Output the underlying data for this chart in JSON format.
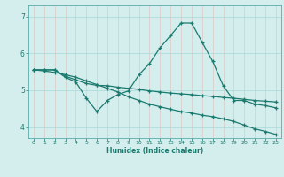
{
  "title": "",
  "xlabel": "Humidex (Indice chaleur)",
  "bg_color": "#d4eeee",
  "grid_color": "#a8d8d8",
  "line_color": "#1a7a6e",
  "spine_color": "#5aacac",
  "tick_color": "#1a7a6e",
  "xlim": [
    -0.5,
    23.5
  ],
  "ylim": [
    3.7,
    7.3
  ],
  "yticks": [
    4,
    5,
    6,
    7
  ],
  "xticks": [
    0,
    1,
    2,
    3,
    4,
    5,
    6,
    7,
    8,
    9,
    10,
    11,
    12,
    13,
    14,
    15,
    16,
    17,
    18,
    19,
    20,
    21,
    22,
    23
  ],
  "line1_x": [
    0,
    1,
    2,
    3,
    4,
    5,
    6,
    7,
    8,
    9,
    10,
    11,
    12,
    13,
    14,
    15,
    16,
    17,
    18,
    19,
    20,
    21,
    22,
    23
  ],
  "line1_y": [
    5.55,
    5.55,
    5.55,
    5.35,
    5.22,
    4.78,
    4.42,
    4.72,
    4.88,
    4.98,
    5.42,
    5.72,
    6.15,
    6.48,
    6.82,
    6.82,
    6.3,
    5.78,
    5.12,
    4.72,
    4.72,
    4.62,
    4.58,
    4.52
  ],
  "line2_x": [
    0,
    1,
    2,
    3,
    4,
    5,
    6,
    7,
    8,
    9,
    10,
    11,
    12,
    13,
    14,
    15,
    16,
    17,
    18,
    19,
    20,
    21,
    22,
    23
  ],
  "line2_y": [
    5.55,
    5.55,
    5.55,
    5.38,
    5.28,
    5.18,
    5.13,
    5.12,
    5.08,
    5.05,
    5.02,
    4.98,
    4.95,
    4.92,
    4.9,
    4.88,
    4.85,
    4.83,
    4.8,
    4.78,
    4.75,
    4.72,
    4.7,
    4.68
  ],
  "line3_x": [
    0,
    1,
    2,
    3,
    4,
    5,
    6,
    7,
    8,
    9,
    10,
    11,
    12,
    13,
    14,
    15,
    16,
    17,
    18,
    19,
    20,
    21,
    22,
    23
  ],
  "line3_y": [
    5.55,
    5.52,
    5.48,
    5.42,
    5.35,
    5.25,
    5.15,
    5.05,
    4.95,
    4.82,
    4.72,
    4.62,
    4.55,
    4.48,
    4.42,
    4.38,
    4.32,
    4.28,
    4.22,
    4.15,
    4.05,
    3.95,
    3.88,
    3.8
  ]
}
